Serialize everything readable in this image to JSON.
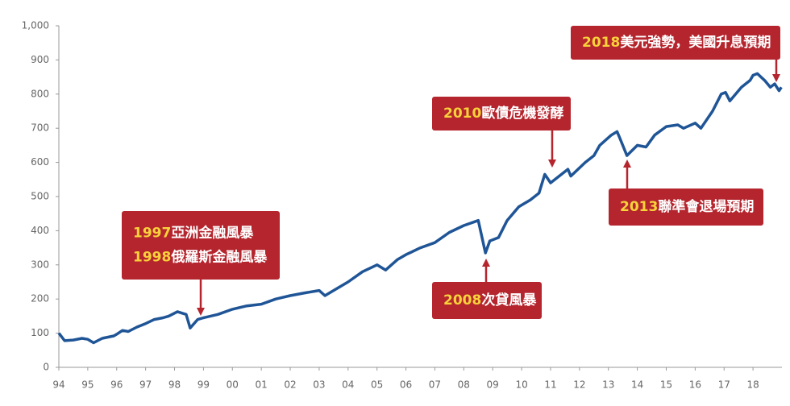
{
  "chart_data": {
    "type": "line",
    "x": [
      1994.0,
      1994.2,
      1994.5,
      1994.8,
      1995.0,
      1995.2,
      1995.5,
      1995.9,
      1996.0,
      1996.2,
      1996.4,
      1996.7,
      1997.0,
      1997.3,
      1997.6,
      1997.8,
      1998.1,
      1998.4,
      1998.54,
      1998.8,
      1999.0,
      1999.5,
      2000.0,
      2000.5,
      2001.0,
      2001.5,
      2002.0,
      2002.5,
      2003.0,
      2003.2,
      2003.6,
      2004.0,
      2004.5,
      2005.0,
      2005.3,
      2005.7,
      2006.0,
      2006.5,
      2007.0,
      2007.5,
      2008.0,
      2008.5,
      2008.75,
      2008.9,
      2009.2,
      2009.5,
      2009.9,
      2010.3,
      2010.6,
      2010.8,
      2011.0,
      2011.6,
      2011.7,
      2012.2,
      2012.5,
      2012.7,
      2013.1,
      2013.3,
      2013.4,
      2013.64,
      2014.0,
      2014.3,
      2014.6,
      2015.0,
      2015.4,
      2015.6,
      2016.0,
      2016.2,
      2016.6,
      2016.9,
      2017.05,
      2017.2,
      2017.6,
      2017.9,
      2018.0,
      2018.15,
      2018.4,
      2018.6,
      2018.75,
      2018.9,
      2018.98
    ],
    "series": [
      {
        "color": "#1f5596",
        "values": [
          100,
          78,
          80,
          85,
          82,
          72,
          85,
          92,
          97,
          108,
          105,
          118,
          128,
          140,
          145,
          150,
          163,
          155,
          115,
          140,
          145,
          155,
          170,
          180,
          185,
          200,
          210,
          218,
          225,
          210,
          230,
          250,
          280,
          300,
          285,
          315,
          330,
          350,
          365,
          395,
          415,
          430,
          335,
          370,
          380,
          430,
          470,
          490,
          510,
          565,
          540,
          580,
          560,
          600,
          620,
          650,
          680,
          690,
          670,
          620,
          650,
          645,
          680,
          705,
          710,
          700,
          715,
          700,
          750,
          800,
          805,
          780,
          820,
          840,
          855,
          860,
          840,
          820,
          830,
          810,
          820
        ]
      }
    ],
    "xlim": [
      1994,
      2019
    ],
    "xticks": [
      {
        "value": 1994,
        "label": "94"
      },
      {
        "value": 1995,
        "label": "95"
      },
      {
        "value": 1996,
        "label": "96"
      },
      {
        "value": 1997,
        "label": "97"
      },
      {
        "value": 1998,
        "label": "98"
      },
      {
        "value": 1999,
        "label": "99"
      },
      {
        "value": 2000,
        "label": "00"
      },
      {
        "value": 2001,
        "label": "01"
      },
      {
        "value": 2002,
        "label": "02"
      },
      {
        "value": 2003,
        "label": "03"
      },
      {
        "value": 2004,
        "label": "04"
      },
      {
        "value": 2005,
        "label": "05"
      },
      {
        "value": 2006,
        "label": "06"
      },
      {
        "value": 2007,
        "label": "07"
      },
      {
        "value": 2008,
        "label": "08"
      },
      {
        "value": 2009,
        "label": "09"
      },
      {
        "value": 2010,
        "label": "10"
      },
      {
        "value": 2011,
        "label": "11"
      },
      {
        "value": 2012,
        "label": "12"
      },
      {
        "value": 2013,
        "label": "13"
      },
      {
        "value": 2014,
        "label": "14"
      },
      {
        "value": 2015,
        "label": "15"
      },
      {
        "value": 2016,
        "label": "16"
      },
      {
        "value": 2017,
        "label": "17"
      },
      {
        "value": 2018,
        "label": "18"
      }
    ],
    "ylim": [
      0,
      1000
    ],
    "yticks": [
      0,
      100,
      200,
      300,
      400,
      500,
      600,
      700,
      800,
      900,
      {
        "value": 1000,
        "label": "1,000"
      }
    ],
    "annotations": [
      {
        "lines": [
          {
            "year": "1997",
            "text": "亞洲金融風暴"
          },
          {
            "year": "1998",
            "text": "俄羅斯金融風暴"
          }
        ]
      },
      {
        "lines": [
          {
            "year": "2008",
            "text": "次貸風暴"
          }
        ]
      },
      {
        "lines": [
          {
            "year": "2010",
            "text": "歐債危機發酵"
          }
        ]
      },
      {
        "lines": [
          {
            "year": "2013",
            "text": "聯準會退場預期"
          }
        ]
      },
      {
        "lines": [
          {
            "year": "2018",
            "text": "美元強勢，美國升息預期"
          }
        ]
      }
    ]
  }
}
